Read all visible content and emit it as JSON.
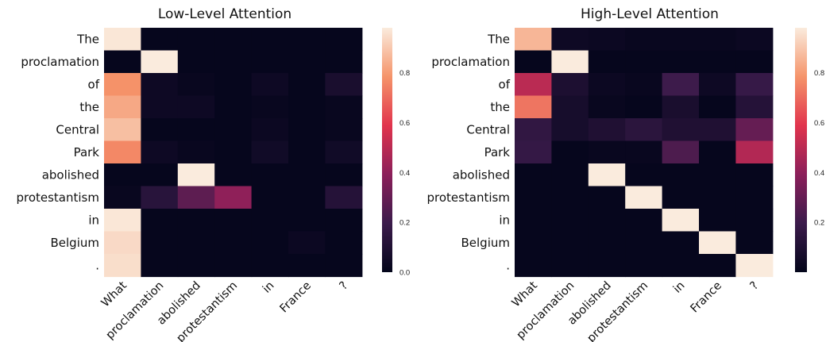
{
  "chart_data": [
    {
      "type": "heatmap",
      "title": "Low-Level Attention",
      "rows": [
        "The",
        "proclamation",
        "of",
        "the",
        "Central",
        "Park",
        "abolished",
        "protestantism",
        "in",
        "Belgium",
        "."
      ],
      "cols": [
        "What",
        "proclamation",
        "abolished",
        "protestantism",
        "in",
        "France",
        "?"
      ],
      "values": [
        [
          0.97,
          0.01,
          0.01,
          0.01,
          0.01,
          0.01,
          0.01
        ],
        [
          0.01,
          0.98,
          0.01,
          0.01,
          0.01,
          0.01,
          0.01
        ],
        [
          0.78,
          0.04,
          0.02,
          0.01,
          0.04,
          0.01,
          0.08
        ],
        [
          0.83,
          0.04,
          0.04,
          0.01,
          0.02,
          0.01,
          0.02
        ],
        [
          0.88,
          0.01,
          0.01,
          0.01,
          0.03,
          0.01,
          0.02
        ],
        [
          0.76,
          0.04,
          0.02,
          0.01,
          0.05,
          0.01,
          0.05
        ],
        [
          0.01,
          0.01,
          0.98,
          0.01,
          0.01,
          0.01,
          0.01
        ],
        [
          0.02,
          0.13,
          0.28,
          0.4,
          0.01,
          0.01,
          0.12
        ],
        [
          0.97,
          0.01,
          0.01,
          0.01,
          0.01,
          0.01,
          0.01
        ],
        [
          0.94,
          0.01,
          0.01,
          0.01,
          0.01,
          0.03,
          0.01
        ],
        [
          0.95,
          0.01,
          0.01,
          0.01,
          0.01,
          0.01,
          0.01
        ]
      ],
      "colorbar": {
        "ticks": [
          "0.0",
          "0.2",
          "0.4",
          "0.6",
          "0.8"
        ],
        "range": [
          0,
          0.98
        ]
      }
    },
    {
      "type": "heatmap",
      "title": "High-Level Attention",
      "rows": [
        "The",
        "proclamation",
        "of",
        "the",
        "Central",
        "Park",
        "abolished",
        "protestantism",
        "in",
        "Belgium",
        "."
      ],
      "cols": [
        "What",
        "proclamation",
        "abolished",
        "protestantism",
        "in",
        "France",
        "?"
      ],
      "values": [
        [
          0.86,
          0.04,
          0.03,
          0.02,
          0.02,
          0.02,
          0.03
        ],
        [
          0.01,
          0.98,
          0.01,
          0.01,
          0.01,
          0.01,
          0.01
        ],
        [
          0.5,
          0.09,
          0.03,
          0.02,
          0.2,
          0.04,
          0.18
        ],
        [
          0.72,
          0.07,
          0.02,
          0.01,
          0.08,
          0.01,
          0.12
        ],
        [
          0.16,
          0.07,
          0.1,
          0.14,
          0.1,
          0.1,
          0.3
        ],
        [
          0.17,
          0.01,
          0.02,
          0.02,
          0.24,
          0.01,
          0.48
        ],
        [
          0.01,
          0.01,
          0.98,
          0.01,
          0.01,
          0.01,
          0.01
        ],
        [
          0.01,
          0.01,
          0.01,
          0.98,
          0.01,
          0.01,
          0.01
        ],
        [
          0.01,
          0.01,
          0.01,
          0.01,
          0.98,
          0.01,
          0.01
        ],
        [
          0.01,
          0.01,
          0.01,
          0.01,
          0.01,
          0.98,
          0.01
        ],
        [
          0.01,
          0.01,
          0.01,
          0.01,
          0.01,
          0.01,
          0.98
        ]
      ],
      "colorbar": {
        "ticks": [
          "0.2",
          "0.4",
          "0.6",
          "0.8"
        ],
        "range": [
          0,
          0.98
        ]
      }
    }
  ]
}
